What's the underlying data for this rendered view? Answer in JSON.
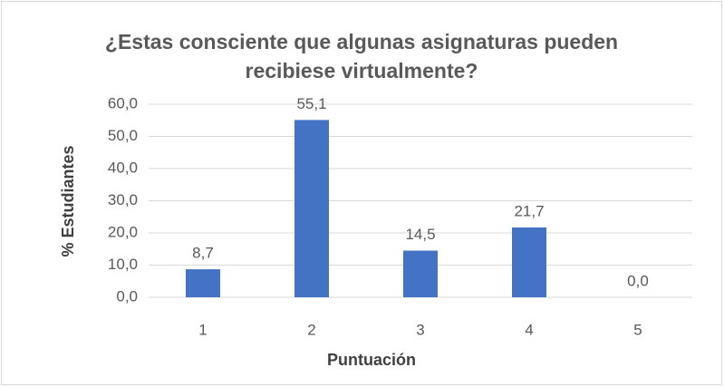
{
  "chart_data": {
    "type": "bar",
    "title": "¿Estas consciente que algunas asignaturas pueden recibiese virtualmente?",
    "xlabel": "Puntuación",
    "ylabel": "% Estudiantes",
    "categories": [
      "1",
      "2",
      "3",
      "4",
      "5"
    ],
    "values": [
      8.7,
      55.1,
      14.5,
      21.7,
      0.0
    ],
    "value_labels": [
      "8,7",
      "55,1",
      "14,5",
      "21,7",
      "0,0"
    ],
    "color": "#4472c4",
    "ylim": [
      0,
      60
    ],
    "yticks": [
      {
        "value": 0,
        "label": "0,0"
      },
      {
        "value": 10,
        "label": "10,0"
      },
      {
        "value": 20,
        "label": "20,0"
      },
      {
        "value": 30,
        "label": "30,0"
      },
      {
        "value": 40,
        "label": "40,0"
      },
      {
        "value": 50,
        "label": "50,0"
      },
      {
        "value": 60,
        "label": "60,0"
      }
    ],
    "grid": true
  }
}
